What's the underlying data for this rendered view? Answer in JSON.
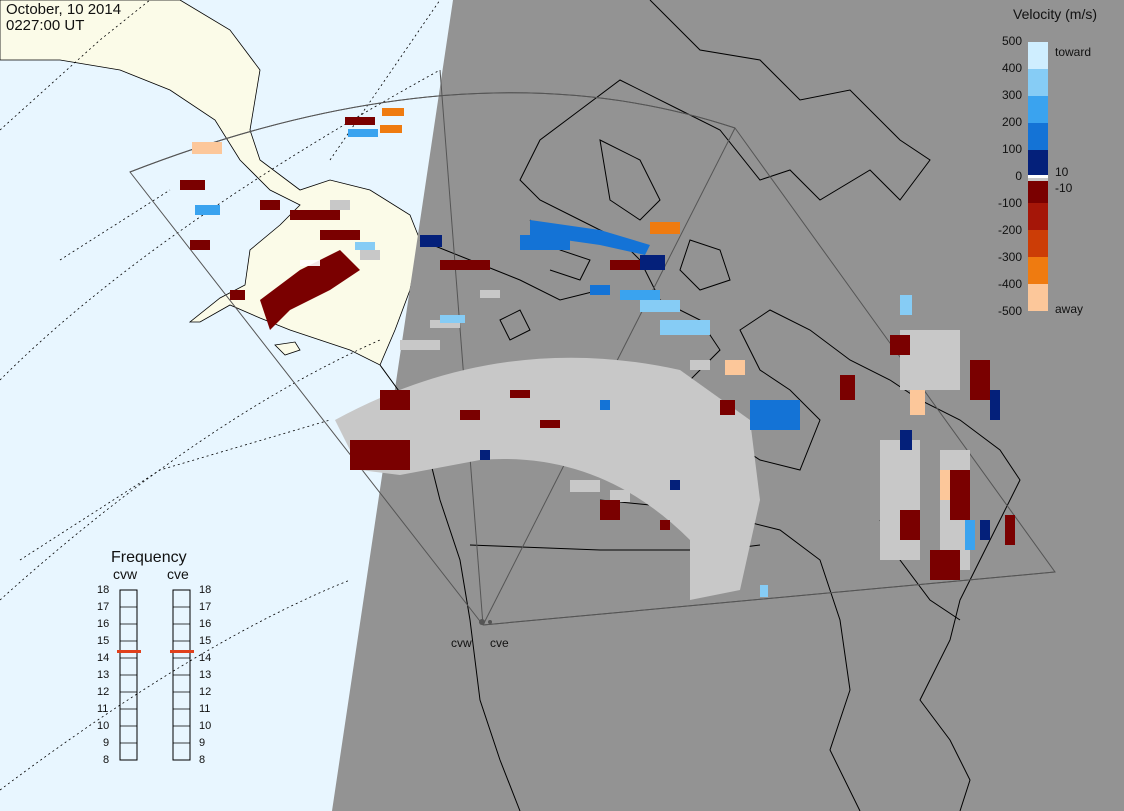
{
  "header": {
    "date": "October, 10 2014",
    "time": "0227:00 UT"
  },
  "colorbar": {
    "title": "Velocity (m/s)",
    "ticks": [
      "500",
      "400",
      "300",
      "200",
      "100",
      "0",
      "-100",
      "-200",
      "-300",
      "-400",
      "-500"
    ],
    "near_zero_ticks": [
      "10",
      "-10"
    ],
    "toward_label": "toward",
    "away_label": "away",
    "colors_top_to_bottom": [
      "#cfeeff",
      "#86ccf5",
      "#3aa3ef",
      "#1473d6",
      "#0a47b0",
      "#04207a",
      "#7a0000",
      "#a51608",
      "#cc3d06",
      "#ef7b10",
      "#fcc79a"
    ]
  },
  "frequency_panel": {
    "title": "Frequency",
    "radars": [
      {
        "name": "cvw",
        "frequency": 15
      },
      {
        "name": "cve",
        "frequency": 15
      }
    ],
    "scale": [
      "18",
      "17",
      "16",
      "15",
      "14",
      "13",
      "12",
      "11",
      "10",
      "9",
      "8"
    ],
    "marker_color": "#e0401c"
  },
  "radar_sites": [
    "cvw",
    "cve"
  ],
  "map_colors": {
    "ocean": "#e8f6ff",
    "land_day": "#fbfbe8",
    "night": "#939393",
    "ground_scatter": "#c8c8c8"
  }
}
